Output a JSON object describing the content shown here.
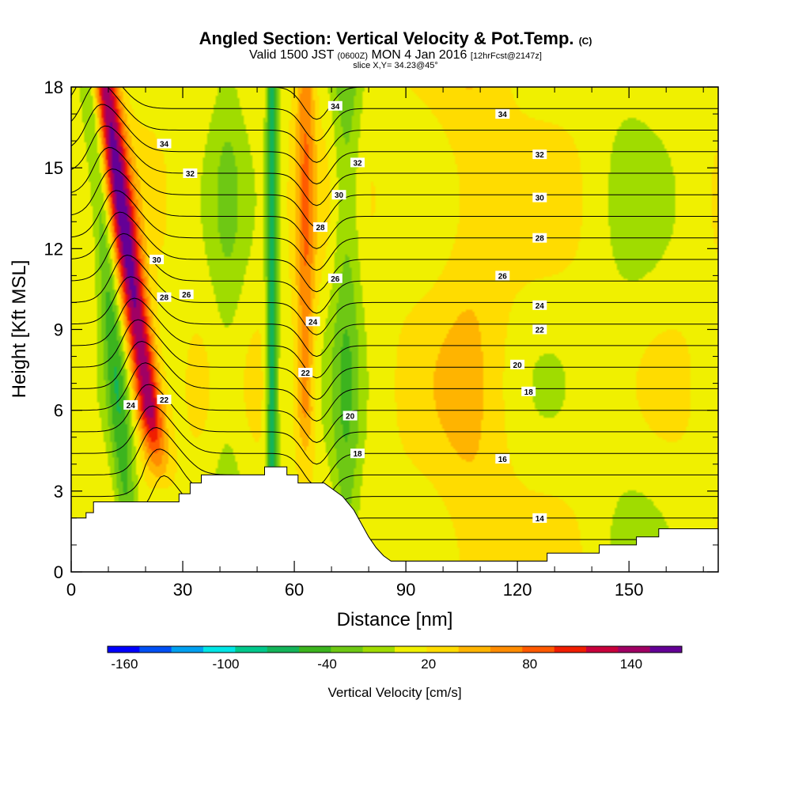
{
  "chart_data": {
    "type": "heatmap",
    "title": "Angled Section: Vertical Velocity & Pot.Temp.",
    "title_mark": "(C)",
    "subtitle_main": "Valid 1500 JST",
    "subtitle_z": "(0600Z)",
    "subtitle_date": "MON 4 Jan 2016",
    "subtitle_fcst": "[12hrFcst@2147z]",
    "slice_text": "slice X,Y= 34.23@45°",
    "xlabel": "Distance [nm]",
    "ylabel": "Height [Kft MSL]",
    "xlim": [
      0,
      174
    ],
    "ylim": [
      0,
      18
    ],
    "x_ticks": [
      "0",
      "30",
      "60",
      "90",
      "120",
      "150"
    ],
    "y_ticks": [
      "0",
      "3",
      "6",
      "9",
      "12",
      "15",
      "18"
    ],
    "colorbar": {
      "title": "Vertical Velocity [cm/s]",
      "min": -170,
      "max": 170,
      "step": 20,
      "tick_labels": [
        "-160",
        "-100",
        "-40",
        "20",
        "80",
        "140"
      ],
      "colors": [
        "#0000ff",
        "#0050f5",
        "#00a0f0",
        "#00e6e6",
        "#00c88c",
        "#14b45a",
        "#3cb41e",
        "#6ec814",
        "#a0dc00",
        "#f0f000",
        "#ffdc00",
        "#ffb400",
        "#ff8c00",
        "#ff5a00",
        "#f01e00",
        "#c8003c",
        "#a00064",
        "#640096"
      ]
    },
    "velocity_fields": [
      {
        "x": 22,
        "width": 3.5,
        "peak": 150
      },
      {
        "x": 63,
        "width": 2.5,
        "peak": 60
      },
      {
        "x": 14,
        "width": 3.0,
        "peak": -60
      },
      {
        "x": 54,
        "width": 1.5,
        "peak": -90
      },
      {
        "x": 74,
        "width": 4.0,
        "peak": -45
      },
      {
        "x": 42,
        "width": 5.0,
        "peak": -25
      },
      {
        "x": 108,
        "width": 10.0,
        "peak": 22
      },
      {
        "x": 150,
        "width": 10.0,
        "peak": -12
      }
    ],
    "terrain": [
      [
        0,
        2.0
      ],
      [
        4,
        2.0
      ],
      [
        4,
        2.2
      ],
      [
        6,
        2.2
      ],
      [
        6,
        2.6
      ],
      [
        29,
        2.6
      ],
      [
        29,
        2.9
      ],
      [
        32,
        2.9
      ],
      [
        32,
        3.3
      ],
      [
        35,
        3.3
      ],
      [
        35,
        3.6
      ],
      [
        52,
        3.6
      ],
      [
        52,
        3.9
      ],
      [
        58,
        3.9
      ],
      [
        58,
        3.6
      ],
      [
        61,
        3.6
      ],
      [
        61,
        3.3
      ],
      [
        68,
        3.3
      ],
      [
        70,
        3.1
      ],
      [
        73,
        2.8
      ],
      [
        76,
        2.3
      ],
      [
        78,
        1.8
      ],
      [
        80,
        1.3
      ],
      [
        82,
        0.9
      ],
      [
        84,
        0.6
      ],
      [
        86,
        0.4
      ],
      [
        128,
        0.4
      ],
      [
        128,
        0.7
      ],
      [
        142,
        0.7
      ],
      [
        142,
        1.0
      ],
      [
        152,
        1.0
      ],
      [
        152,
        1.3
      ],
      [
        158,
        1.3
      ],
      [
        158,
        1.6
      ],
      [
        174,
        1.6
      ]
    ],
    "isentropes": {
      "levels": [
        12,
        13,
        14,
        15,
        16,
        17,
        18,
        19,
        20,
        21,
        22,
        23,
        24,
        25,
        26,
        27,
        28,
        29,
        30,
        31,
        32,
        33,
        34,
        35
      ],
      "labels": [
        {
          "text": "34",
          "x": 25,
          "y": 15.9
        },
        {
          "text": "32",
          "x": 32,
          "y": 14.8
        },
        {
          "text": "30",
          "x": 23,
          "y": 11.6
        },
        {
          "text": "28",
          "x": 25,
          "y": 10.2
        },
        {
          "text": "26",
          "x": 31,
          "y": 10.3
        },
        {
          "text": "24",
          "x": 16,
          "y": 6.2
        },
        {
          "text": "22",
          "x": 25,
          "y": 6.4
        },
        {
          "text": "34",
          "x": 71,
          "y": 17.3
        },
        {
          "text": "32",
          "x": 77,
          "y": 15.2
        },
        {
          "text": "30",
          "x": 72,
          "y": 14.0
        },
        {
          "text": "28",
          "x": 67,
          "y": 12.8
        },
        {
          "text": "26",
          "x": 71,
          "y": 10.9
        },
        {
          "text": "24",
          "x": 65,
          "y": 9.3
        },
        {
          "text": "22",
          "x": 63,
          "y": 7.4
        },
        {
          "text": "20",
          "x": 75,
          "y": 5.8
        },
        {
          "text": "18",
          "x": 77,
          "y": 4.4
        },
        {
          "text": "34",
          "x": 116,
          "y": 17.0
        },
        {
          "text": "32",
          "x": 126,
          "y": 15.5
        },
        {
          "text": "30",
          "x": 126,
          "y": 13.9
        },
        {
          "text": "28",
          "x": 126,
          "y": 12.4
        },
        {
          "text": "26",
          "x": 116,
          "y": 11.0
        },
        {
          "text": "24",
          "x": 126,
          "y": 9.9
        },
        {
          "text": "22",
          "x": 126,
          "y": 9.0
        },
        {
          "text": "20",
          "x": 120,
          "y": 7.7
        },
        {
          "text": "18",
          "x": 123,
          "y": 6.7
        },
        {
          "text": "16",
          "x": 116,
          "y": 4.2
        },
        {
          "text": "14",
          "x": 126,
          "y": 2.0
        }
      ]
    }
  }
}
